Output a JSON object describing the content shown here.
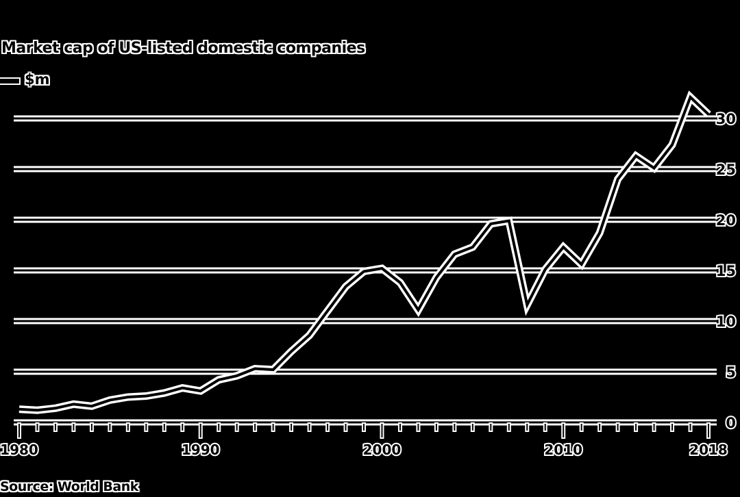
{
  "chart_data": {
    "type": "line",
    "title": "Market cap of US-listed domestic companies",
    "legend": "$m",
    "source": "Source: World Bank",
    "x": [
      1980,
      1981,
      1982,
      1983,
      1984,
      1985,
      1986,
      1987,
      1988,
      1989,
      1990,
      1991,
      1992,
      1993,
      1994,
      1995,
      1996,
      1997,
      1998,
      1999,
      2000,
      2001,
      2002,
      2003,
      2004,
      2005,
      2006,
      2007,
      2008,
      2009,
      2010,
      2011,
      2012,
      2013,
      2014,
      2015,
      2016,
      2017,
      2018
    ],
    "series": [
      {
        "name": "$m",
        "values": [
          1.3,
          1.2,
          1.4,
          1.8,
          1.6,
          2.2,
          2.5,
          2.6,
          2.9,
          3.4,
          3.1,
          4.2,
          4.6,
          5.3,
          5.2,
          7.0,
          8.6,
          11.0,
          13.4,
          14.9,
          15.2,
          13.8,
          11.1,
          14.3,
          16.6,
          17.3,
          19.6,
          19.9,
          11.6,
          15.1,
          17.3,
          15.6,
          18.7,
          24.0,
          26.3,
          25.1,
          27.4,
          32.1,
          30.4
        ]
      }
    ],
    "xlim": [
      1980,
      2018
    ],
    "ylim": [
      0,
      30
    ],
    "x_ticks": [
      1980,
      1990,
      2000,
      2010,
      2018
    ],
    "y_ticks": [
      0,
      5,
      10,
      15,
      20,
      25,
      30
    ],
    "grid": true,
    "legend_position": "top-left",
    "colors": {
      "background": "#000000",
      "line": "#ffffff"
    }
  }
}
